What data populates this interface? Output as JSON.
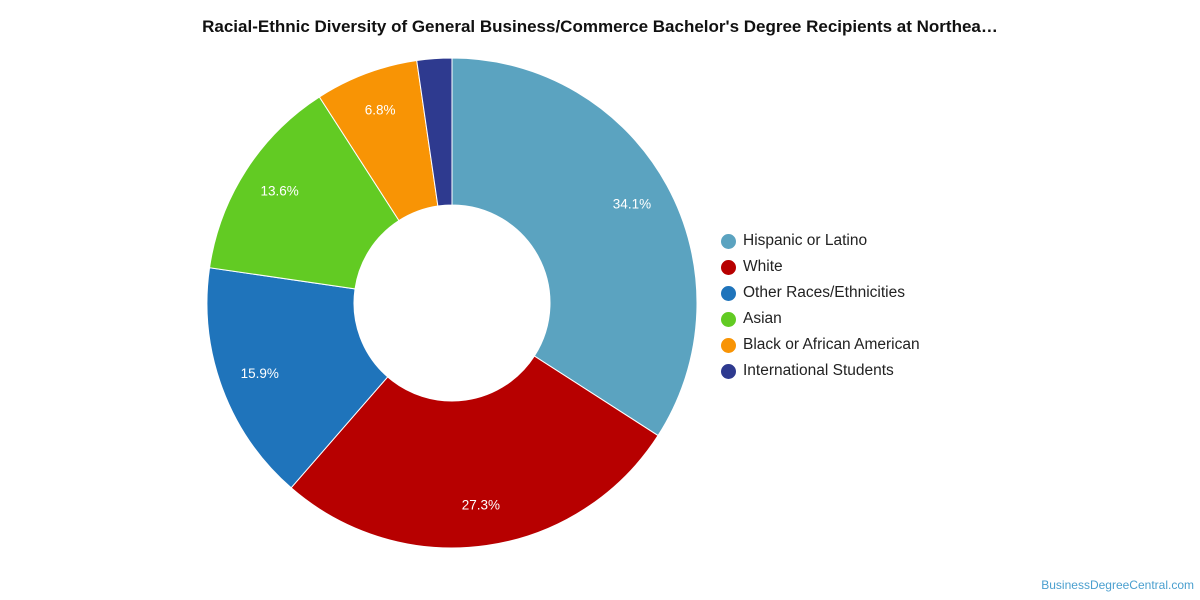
{
  "chart_data": {
    "type": "pie",
    "title": "Racial-Ethnic Diversity of General Business/Commerce Bachelor's Degree Recipients at Northea…",
    "hole": true,
    "legend_position": "right",
    "slices": [
      {
        "name": "Hispanic or Latino",
        "value": 34.1,
        "label": "34.1%",
        "color": "#5ba3c0"
      },
      {
        "name": "White",
        "value": 27.3,
        "label": "27.3%",
        "color": "#b70000"
      },
      {
        "name": "Other Races/Ethnicities",
        "value": 15.9,
        "label": "15.9%",
        "color": "#1f74bb"
      },
      {
        "name": "Asian",
        "value": 13.6,
        "label": "13.6%",
        "color": "#62cb23"
      },
      {
        "name": "Black or African American",
        "value": 6.8,
        "label": "6.8%",
        "color": "#f89405"
      },
      {
        "name": "International Students",
        "value": 2.3,
        "label": "",
        "color": "#2e3a8f"
      }
    ]
  },
  "credit": "BusinessDegreeCentral.com"
}
